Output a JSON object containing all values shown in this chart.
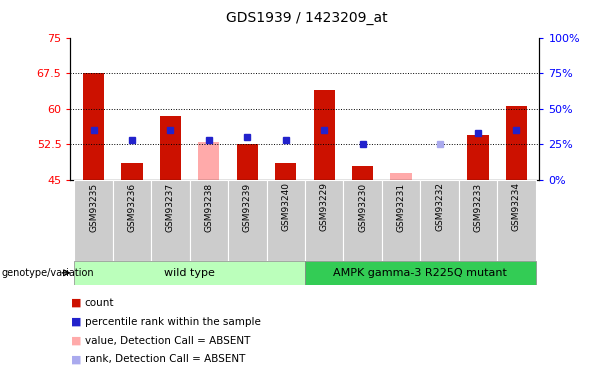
{
  "title": "GDS1939 / 1423209_at",
  "samples": [
    "GSM93235",
    "GSM93236",
    "GSM93237",
    "GSM93238",
    "GSM93239",
    "GSM93240",
    "GSM93229",
    "GSM93230",
    "GSM93231",
    "GSM93232",
    "GSM93233",
    "GSM93234"
  ],
  "red_bar_top": [
    67.5,
    48.5,
    58.5,
    45.0,
    52.5,
    48.5,
    64.0,
    48.0,
    45.0,
    45.0,
    54.5,
    60.5
  ],
  "pink_bar_top": [
    45.0,
    45.0,
    45.0,
    53.0,
    45.0,
    45.0,
    45.0,
    45.0,
    46.5,
    45.0,
    45.0,
    45.0
  ],
  "blue_sq_y": [
    55.5,
    53.5,
    55.5,
    53.5,
    54.0,
    53.5,
    55.5,
    52.5,
    45.0,
    54.5,
    55.0,
    55.5
  ],
  "light_blue_sq_y": [
    45.0,
    45.0,
    45.0,
    45.0,
    45.0,
    45.0,
    45.0,
    45.0,
    45.0,
    52.5,
    45.0,
    45.0
  ],
  "absent_red": [
    false,
    false,
    false,
    true,
    false,
    false,
    false,
    false,
    true,
    false,
    false,
    false
  ],
  "absent_blue": [
    false,
    false,
    false,
    false,
    false,
    false,
    false,
    false,
    false,
    true,
    false,
    false
  ],
  "ymin": 45,
  "ymax": 75,
  "yticks_left": [
    45,
    52.5,
    60,
    67.5,
    75
  ],
  "yticks_right": [
    0,
    25,
    50,
    75,
    100
  ],
  "hlines": [
    67.5,
    60.0,
    52.5
  ],
  "bar_color_red": "#cc1100",
  "bar_color_pink": "#ffaaaa",
  "sq_color_blue": "#2222cc",
  "sq_color_lightblue": "#aaaaee",
  "group1_label": "wild type",
  "group2_label": "AMPK gamma-3 R225Q mutant",
  "group1_color": "#bbffbb",
  "group2_color": "#33cc55",
  "sample_box_color": "#cccccc",
  "bar_width": 0.55,
  "bg_color": "#ffffff",
  "legend_items": [
    "count",
    "percentile rank within the sample",
    "value, Detection Call = ABSENT",
    "rank, Detection Call = ABSENT"
  ],
  "legend_colors": [
    "#cc1100",
    "#2222cc",
    "#ffaaaa",
    "#aaaaee"
  ]
}
